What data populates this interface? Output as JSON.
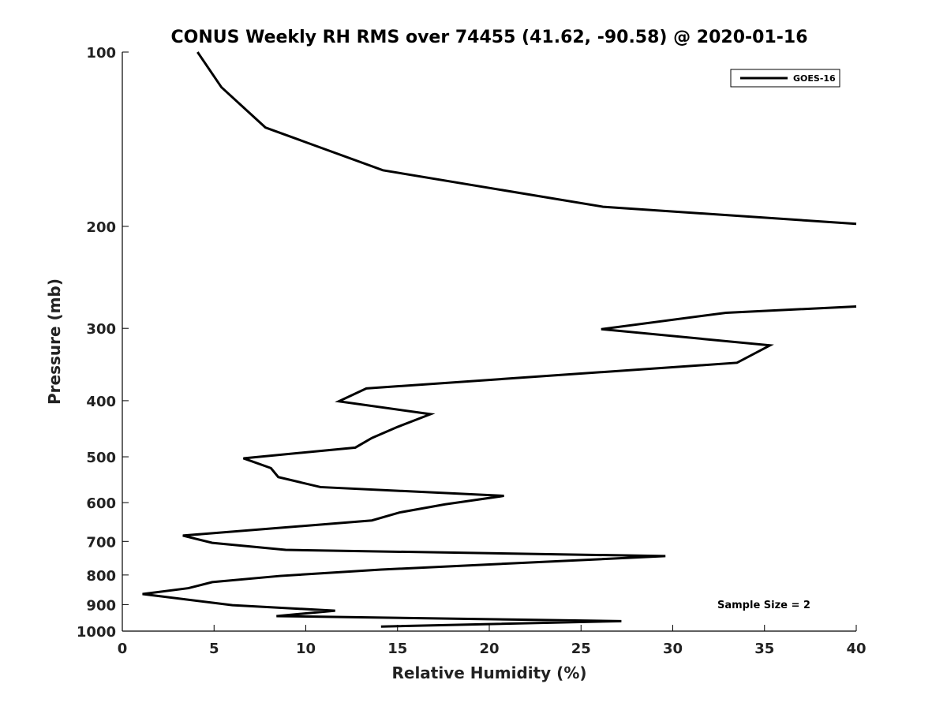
{
  "chart_data": {
    "type": "line",
    "title": "CONUS Weekly RH RMS over 74455 (41.62, -90.58) @ 2020-01-16",
    "xlabel": "Relative Humidity (%)",
    "ylabel": "Pressure (mb)",
    "xlim": [
      0,
      40
    ],
    "ylim": [
      1000,
      100
    ],
    "yscale": "log",
    "x_ticks": [
      "0",
      "5",
      "10",
      "15",
      "20",
      "25",
      "30",
      "35",
      "40"
    ],
    "y_ticks": [
      "100",
      "200",
      "300",
      "400",
      "500",
      "600",
      "700",
      "800",
      "900",
      "1000"
    ],
    "legend": {
      "placement": "top-right",
      "entries": [
        "GOES-16"
      ]
    },
    "annotation": "Sample Size = 2",
    "grid": false,
    "series": [
      {
        "name": "GOES-16",
        "color": "#000000",
        "points": [
          [
            4.1,
            100
          ],
          [
            5.4,
            115
          ],
          [
            7.8,
            135
          ],
          [
            14.2,
            160
          ],
          [
            26.2,
            185
          ],
          [
            40.0,
            198
          ],
          [
            null,
            null
          ],
          [
            40.0,
            275
          ],
          [
            32.9,
            282
          ],
          [
            26.1,
            301
          ],
          [
            35.3,
            321
          ],
          [
            33.5,
            344
          ],
          [
            13.3,
            381
          ],
          [
            11.8,
            401
          ],
          [
            16.8,
            422
          ],
          [
            15.0,
            444
          ],
          [
            13.6,
            464
          ],
          [
            12.7,
            482
          ],
          [
            6.6,
            503
          ],
          [
            8.1,
            523
          ],
          [
            8.5,
            542
          ],
          [
            10.8,
            564
          ],
          [
            20.8,
            584
          ],
          [
            17.6,
            604
          ],
          [
            15.1,
            624
          ],
          [
            13.6,
            644
          ],
          [
            3.3,
            684
          ],
          [
            4.9,
            704
          ],
          [
            8.9,
            724
          ],
          [
            29.6,
            742
          ],
          [
            14.1,
            783
          ],
          [
            8.6,
            803
          ],
          [
            4.9,
            823
          ],
          [
            3.6,
            843
          ],
          [
            1.1,
            863
          ],
          [
            6.0,
            902
          ],
          [
            11.6,
            922
          ],
          [
            8.4,
            942
          ],
          [
            27.2,
            961
          ],
          [
            14.1,
            982
          ]
        ]
      }
    ]
  }
}
